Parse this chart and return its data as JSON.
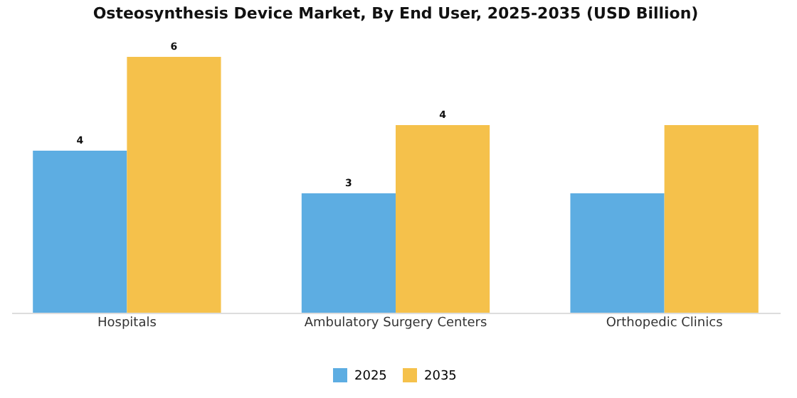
{
  "chart_data": {
    "type": "bar",
    "title": "Osteosynthesis Device Market, By End User, 2025-2035 (USD Billion)",
    "categories": [
      "Hospitals",
      "Ambulatory Surgery Centers",
      "Orthopedic Clinics"
    ],
    "series": [
      {
        "name": "2025",
        "color": "#5dade2",
        "values": [
          3.8,
          2.8,
          2.8
        ],
        "value_labels": [
          "4",
          "3",
          null
        ]
      },
      {
        "name": "2035",
        "color": "#f5c14b",
        "values": [
          6,
          4.4,
          4.4
        ],
        "value_labels": [
          "6",
          "4",
          null
        ]
      }
    ],
    "legend": "bottom"
  }
}
